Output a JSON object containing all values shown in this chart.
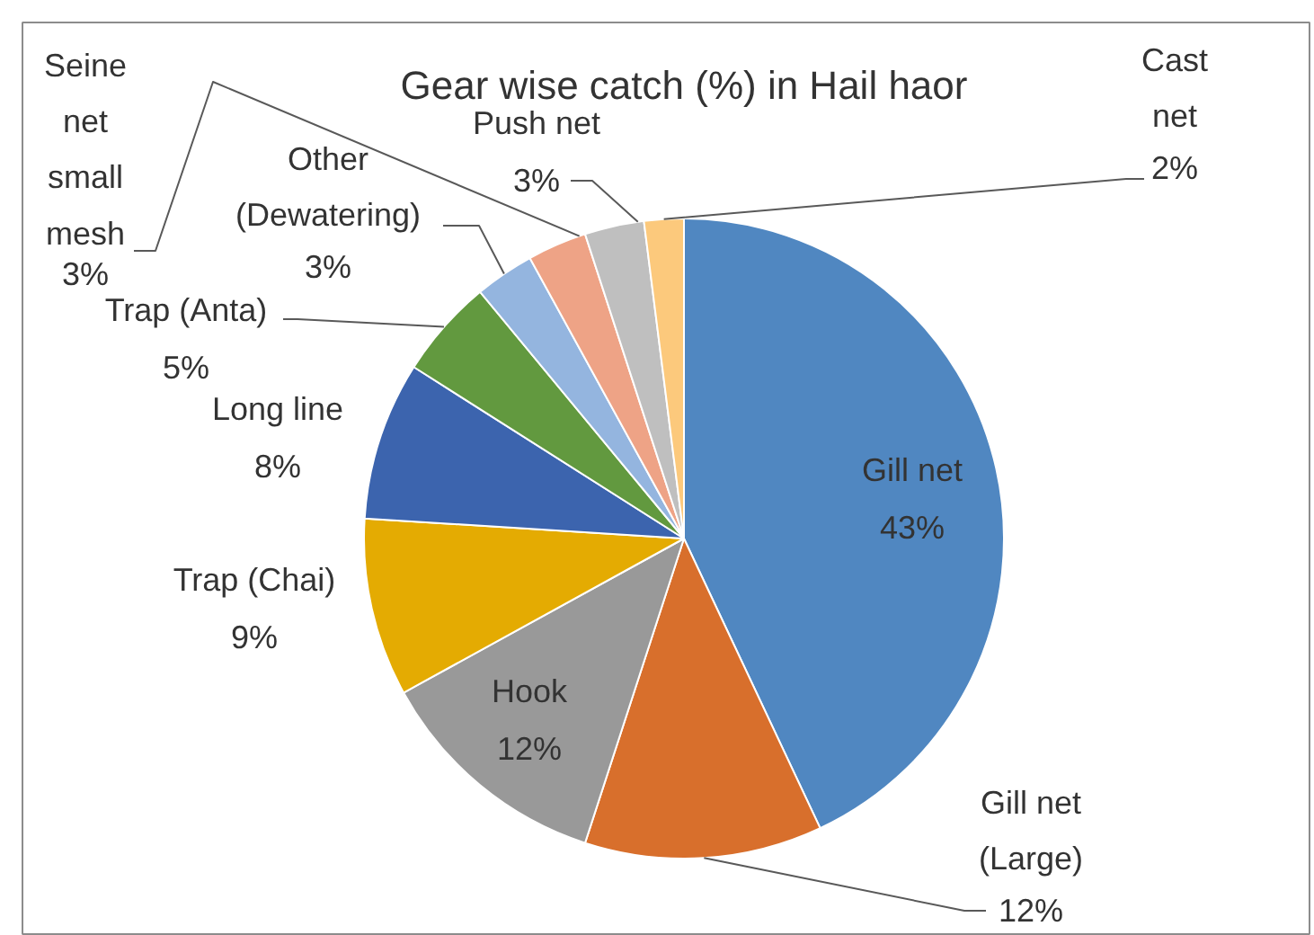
{
  "chart_data": {
    "type": "pie",
    "title": "Gear wise catch (%) in Hail haor",
    "categories": [
      "Gill net",
      "Gill net (Large)",
      "Hook",
      "Trap (Chai)",
      "Long line",
      "Trap (Anta)",
      "Other (Dewatering)",
      "Seine net small mesh",
      "Push net",
      "Cast net"
    ],
    "values": [
      43,
      12,
      12,
      9,
      8,
      5,
      3,
      3,
      3,
      2
    ],
    "value_labels": [
      "43%",
      "12%",
      "12%",
      "9%",
      "8%",
      "5%",
      "3%",
      "3%",
      "3%",
      "2%"
    ],
    "colors": [
      "#5087c1",
      "#d86f2c",
      "#999999",
      "#e4ab02",
      "#3c64ae",
      "#62993f",
      "#94b5df",
      "#eea386",
      "#bfbfbf",
      "#fcc97c"
    ]
  }
}
